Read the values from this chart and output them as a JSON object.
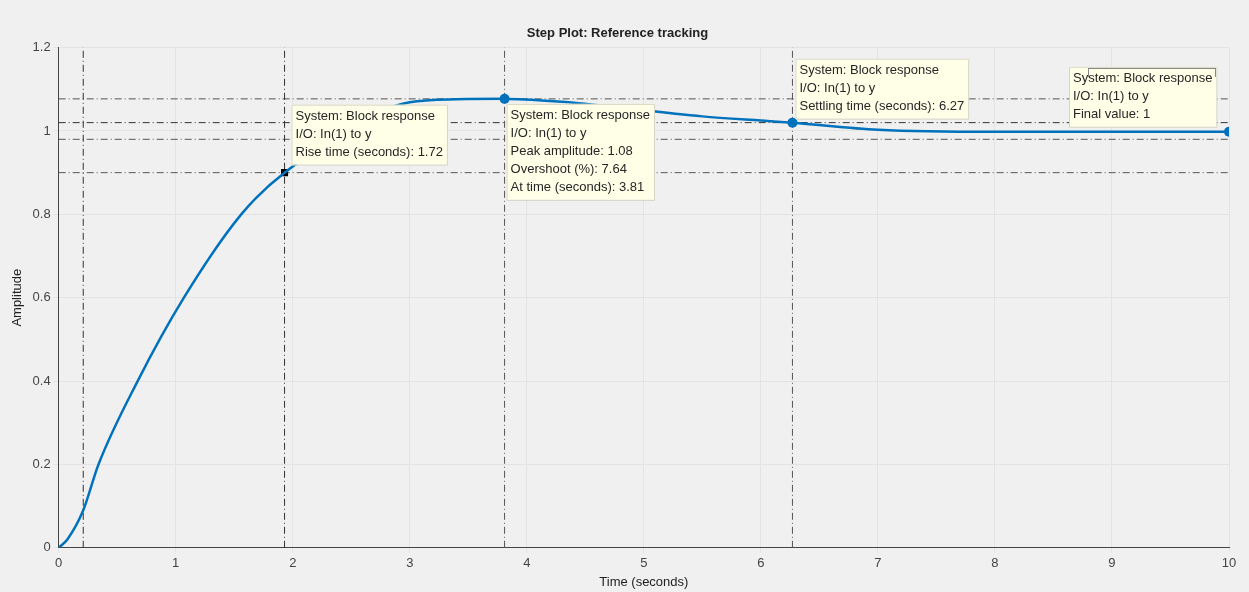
{
  "chart_data": {
    "type": "line",
    "title": "Step Plot: Reference tracking",
    "xlabel": "Time (seconds)",
    "ylabel": "Amplitude",
    "xlim": [
      0,
      10
    ],
    "xticks": [
      0,
      1,
      2,
      3,
      4,
      5,
      6,
      7,
      8,
      9,
      10
    ],
    "ylim": [
      0,
      1.2
    ],
    "yticks": [
      0,
      0.2,
      0.4,
      0.6,
      0.8,
      1,
      1.2
    ],
    "grid": true,
    "legend": false,
    "series": [
      {
        "color": "#0072bd",
        "marker": "none",
        "x": [
          0,
          0.074,
          0.21,
          0.34,
          0.675,
          1.07,
          1.56,
          1.93,
          3,
          3.4,
          3.81,
          4.3,
          5.5,
          6,
          6.27,
          7,
          8,
          9,
          10
        ],
        "values": [
          0,
          0.02,
          0.09,
          0.2,
          0.4,
          0.6,
          0.8,
          0.9,
          1.069,
          1.076,
          1.077,
          1.07,
          1.035,
          1.025,
          1.02,
          1.003,
          0.998,
          0.998,
          0.998
        ]
      },
      {
        "type": "scatter",
        "color": "#000000",
        "marker": "square",
        "x": [
          1.93
        ],
        "values": [
          0.9
        ]
      },
      {
        "type": "scatter",
        "color": "#0072bd",
        "marker": "circle",
        "x": [
          3.81,
          6.27,
          10
        ],
        "values": [
          1.077,
          1.02,
          0.998
        ]
      }
    ],
    "ref_lines": [
      {
        "axis": "y",
        "value": 1.077,
        "color": "#555555",
        "line_style": "dashdot"
      },
      {
        "axis": "y",
        "value": 1.02,
        "color": "#333333",
        "line_style": "dashdot"
      },
      {
        "axis": "y",
        "value": 0.98,
        "color": "#555555",
        "line_style": "dashdot"
      },
      {
        "axis": "y",
        "value": 0.9,
        "color": "#555555",
        "line_style": "dashdot"
      },
      {
        "axis": "x",
        "value": 0.21,
        "color": "#333333",
        "line_style": "dashdot"
      },
      {
        "axis": "x",
        "value": 1.93,
        "color": "#333333",
        "line_style": "dashdot"
      },
      {
        "axis": "x",
        "value": 3.81,
        "color": "#555555",
        "line_style": "dashdot"
      },
      {
        "axis": "x",
        "value": 6.27,
        "color": "#555555",
        "line_style": "dashdot"
      }
    ],
    "annotations": [
      {
        "text": "System: Block response\nI/O: In(1) to y\nRise time (seconds): 1.72",
        "x": 1.93,
        "y": 0.9
      },
      {
        "text": "System: Block response\nI/O: In(1) to y\nPeak amplitude: 1.08\nOvershoot (%): 7.64\nAt time (seconds): 3.81",
        "x": 3.81,
        "y": 1.077
      },
      {
        "text": "System: Block response\nI/O: In(1) to y\nSettling time (seconds): 6.27",
        "x": 6.27,
        "y": 1.02
      },
      {
        "text": "System: Block response\nI/O: In(1) to y\nFinal value: 1",
        "x": 10,
        "y": 0.998
      }
    ]
  }
}
